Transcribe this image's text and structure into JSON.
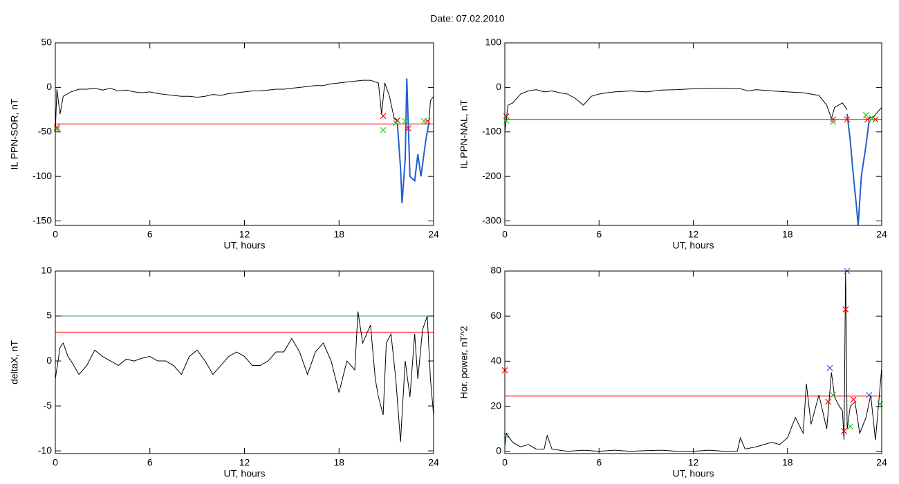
{
  "header": {
    "title": "Date:  07.02.2010"
  },
  "chart_data": [
    {
      "type": "line",
      "xlabel": "UT, hours",
      "ylabel": "IL PPN-SOR, nT",
      "xlim": [
        0,
        24
      ],
      "xticks": [
        0,
        6,
        12,
        18,
        24
      ],
      "ylim": [
        -155,
        50
      ],
      "yticks": [
        -150,
        -100,
        -50,
        0,
        50
      ],
      "series": [
        {
          "color": "#000000",
          "x": [
            0,
            0.1,
            0.3,
            0.5,
            1,
            1.5,
            2,
            2.5,
            3,
            3.5,
            4,
            4.5,
            5,
            5.5,
            6,
            6.5,
            7,
            7.5,
            8,
            8.5,
            9,
            9.5,
            10,
            10.5,
            11,
            11.5,
            12,
            12.5,
            13,
            13.5,
            14,
            14.5,
            15,
            15.5,
            16,
            16.5,
            17,
            17.5,
            18,
            18.5,
            19,
            19.5,
            20,
            20.5,
            20.7,
            20.9,
            21.2,
            21.5,
            21.7
          ],
          "values": [
            -50,
            -2,
            -30,
            -10,
            -5,
            -2,
            -2,
            -1,
            -3,
            -1,
            -4,
            -3,
            -5,
            -6,
            -5,
            -7,
            -8,
            -9,
            -10,
            -10,
            -11,
            -10,
            -8,
            -9,
            -7,
            -6,
            -5,
            -4,
            -4,
            -3,
            -2,
            -2,
            -1,
            0,
            1,
            2,
            2,
            4,
            5,
            6,
            7,
            8,
            8,
            5,
            -30,
            5,
            -10,
            -35,
            -38
          ]
        },
        {
          "color": "#1f5fd0",
          "x": [
            21.7,
            21.9,
            22.0,
            22.2,
            22.3,
            22.5,
            22.8,
            23.0,
            23.2,
            23.5,
            23.7
          ],
          "values": [
            -40,
            -90,
            -130,
            -80,
            10,
            -100,
            -105,
            -75,
            -100,
            -60,
            -40
          ]
        },
        {
          "color": "#000000",
          "x": [
            23.7,
            23.8,
            24
          ],
          "values": [
            -40,
            -15,
            -10
          ]
        }
      ],
      "hlines": [
        {
          "value": -41,
          "color": "#ff0000"
        }
      ],
      "markers": [
        {
          "color": "#ff0000",
          "x": [
            0.1,
            20.8,
            21.7,
            22.4,
            23.6
          ],
          "values": [
            -45,
            -32,
            -37,
            -46,
            -38
          ]
        },
        {
          "color": "#22cc22",
          "x": [
            0.1,
            20.8,
            21.6,
            22.2,
            23.4
          ],
          "values": [
            -47,
            -48,
            -40,
            -38,
            -38
          ]
        }
      ]
    },
    {
      "type": "line",
      "xlabel": "UT, hours",
      "ylabel": "IL PPN-NAL, nT",
      "xlim": [
        0,
        24
      ],
      "xticks": [
        0,
        6,
        12,
        18,
        24
      ],
      "ylim": [
        -310,
        100
      ],
      "yticks": [
        -300,
        -200,
        -100,
        0,
        100
      ],
      "series": [
        {
          "color": "#000000",
          "x": [
            0,
            0.2,
            0.5,
            1,
            1.5,
            2,
            2.5,
            3,
            3.5,
            4,
            4.5,
            5,
            5.5,
            6,
            6.5,
            7,
            8,
            9,
            10,
            11,
            12,
            13,
            14,
            15,
            15.5,
            16,
            17,
            18,
            19,
            20,
            20.5,
            20.8,
            21,
            21.5,
            21.8
          ],
          "values": [
            -100,
            -40,
            -35,
            -15,
            -8,
            -5,
            -10,
            -8,
            -12,
            -15,
            -25,
            -40,
            -20,
            -15,
            -12,
            -10,
            -8,
            -10,
            -6,
            -5,
            -3,
            -2,
            -2,
            -3,
            -8,
            -5,
            -8,
            -10,
            -12,
            -18,
            -40,
            -70,
            -45,
            -35,
            -50
          ]
        },
        {
          "color": "#1f5fd0",
          "x": [
            21.8,
            22.0,
            22.2,
            22.4,
            22.5,
            22.7,
            23.0,
            23.2
          ],
          "values": [
            -60,
            -120,
            -200,
            -270,
            -310,
            -200,
            -130,
            -75
          ]
        },
        {
          "color": "#000000",
          "x": [
            23.2,
            23.5,
            24
          ],
          "values": [
            -70,
            -65,
            -45
          ]
        }
      ],
      "hlines": [
        {
          "value": -72,
          "color": "#ff0000"
        }
      ],
      "markers": [
        {
          "color": "#ff0000",
          "x": [
            0.1,
            20.9,
            21.8,
            23.1,
            23.6
          ],
          "values": [
            -65,
            -72,
            -72,
            -72,
            -72
          ]
        },
        {
          "color": "#22cc22",
          "x": [
            0.1,
            20.9,
            23.0,
            23.4
          ],
          "values": [
            -75,
            -78,
            -62,
            -70
          ]
        }
      ]
    },
    {
      "type": "line",
      "xlabel": "UT, hours",
      "ylabel": "deltaX, nT",
      "xlim": [
        0,
        24
      ],
      "xticks": [
        0,
        6,
        12,
        18,
        24
      ],
      "ylim": [
        -10.3,
        10
      ],
      "yticks": [
        -10,
        -5,
        0,
        5,
        10
      ],
      "series": [
        {
          "color": "#000000",
          "x": [
            0,
            0.3,
            0.5,
            0.8,
            1,
            1.5,
            2,
            2.5,
            3,
            3.5,
            4,
            4.5,
            5,
            5.5,
            6,
            6.5,
            7,
            7.5,
            8,
            8.5,
            9,
            9.5,
            10,
            10.5,
            11,
            11.5,
            12,
            12.5,
            13,
            13.5,
            14,
            14.5,
            15,
            15.5,
            16,
            16.5,
            17,
            17.5,
            18,
            18.5,
            19,
            19.2,
            19.5,
            20,
            20.3,
            20.5,
            20.8,
            21,
            21.3,
            21.6,
            21.9,
            22.2,
            22.5,
            22.8,
            23,
            23.3,
            23.6,
            23.8,
            24
          ],
          "values": [
            -2,
            1.5,
            2,
            0.5,
            0,
            -1.5,
            -0.5,
            1.2,
            0.5,
            0,
            -0.5,
            0.2,
            0,
            0.3,
            0.5,
            0,
            0,
            -0.5,
            -1.5,
            0.5,
            1.2,
            0,
            -1.5,
            -0.5,
            0.5,
            1,
            0.5,
            -0.5,
            -0.5,
            0,
            1,
            1,
            2.5,
            1,
            -1.5,
            1,
            2,
            0,
            -3.5,
            0,
            -1,
            5.5,
            2,
            4,
            -2,
            -4,
            -6,
            2,
            3,
            -2,
            -9,
            0,
            -4,
            3,
            -2,
            3.5,
            5,
            -2,
            -6
          ]
        }
      ],
      "hlines": [
        {
          "value": 5,
          "color": "#1a9a9a"
        },
        {
          "value": 3.2,
          "color": "#ff0000"
        }
      ],
      "markers": []
    },
    {
      "type": "line",
      "xlabel": "UT, hours",
      "ylabel": "Hor. power, nT^2",
      "xlim": [
        0,
        24
      ],
      "xticks": [
        0,
        6,
        12,
        18,
        24
      ],
      "ylim": [
        -1,
        80
      ],
      "yticks": [
        0,
        20,
        40,
        60,
        80
      ],
      "series": [
        {
          "color": "#000000",
          "x": [
            0,
            0.1,
            0.5,
            1,
            1.5,
            2,
            2.5,
            2.7,
            3,
            4,
            5,
            6,
            7,
            8,
            9,
            10,
            11,
            12,
            13,
            14,
            14.8,
            15,
            15.3,
            16,
            17,
            17.5,
            18,
            18.5,
            19,
            19.2,
            19.5,
            20,
            20.5,
            20.8,
            21,
            21.3,
            21.5,
            21.6,
            21.7,
            21.8,
            22,
            22.3,
            22.6,
            23,
            23.3,
            23.6,
            24
          ],
          "values": [
            2,
            8,
            4,
            2,
            3,
            1,
            1,
            7,
            1,
            0,
            0.5,
            0,
            0.5,
            0,
            0.3,
            0.5,
            0,
            0,
            0.5,
            0,
            0,
            6,
            1,
            2,
            4,
            3,
            6,
            15,
            8,
            30,
            12,
            25,
            10,
            35,
            24,
            20,
            18,
            5,
            80,
            10,
            20,
            22,
            8,
            15,
            25,
            5,
            37
          ]
        }
      ],
      "hlines": [
        {
          "value": 24.5,
          "color": "#ff0000"
        }
      ],
      "markers": [
        {
          "color": "#ff0000",
          "x": [
            0,
            20.6,
            21.6,
            21.7,
            22.2
          ],
          "values": [
            36,
            22,
            9,
            63,
            23
          ]
        },
        {
          "color": "#2266dd",
          "x": [
            20.7,
            21.8,
            23.2
          ],
          "values": [
            37,
            80,
            25
          ]
        },
        {
          "color": "#22cc22",
          "x": [
            0.1,
            20.9,
            22,
            23.9
          ],
          "values": [
            7,
            25,
            11,
            21
          ]
        }
      ]
    }
  ]
}
